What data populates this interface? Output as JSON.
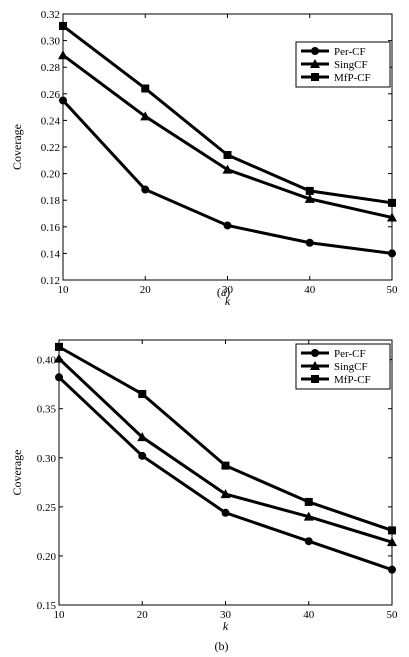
{
  "colors": {
    "line": "#000000",
    "axis": "#000000",
    "background": "#ffffff"
  },
  "chart_data": [
    {
      "type": "line",
      "caption": "(a)",
      "xlabel": "k",
      "ylabel": "Coverage",
      "x": [
        10,
        20,
        30,
        40,
        50
      ],
      "xticks": [
        "10",
        "20",
        "30",
        "40",
        "50"
      ],
      "xlim": [
        10,
        50
      ],
      "ylim": [
        0.12,
        0.32
      ],
      "yticks": [
        "0.12",
        "0.14",
        "0.16",
        "0.18",
        "0.20",
        "0.22",
        "0.24",
        "0.26",
        "0.28",
        "0.30",
        "0.32"
      ],
      "grid": false,
      "legend_position": "top-right",
      "series": [
        {
          "name": "Per-CF",
          "marker": "circle",
          "values": [
            0.255,
            0.188,
            0.161,
            0.148,
            0.14
          ]
        },
        {
          "name": "SingCF",
          "marker": "triangle",
          "values": [
            0.289,
            0.243,
            0.203,
            0.181,
            0.167
          ]
        },
        {
          "name": "MfP-CF",
          "marker": "square",
          "values": [
            0.311,
            0.264,
            0.214,
            0.187,
            0.178
          ]
        }
      ]
    },
    {
      "type": "line",
      "caption": "(b)",
      "xlabel": "k",
      "ylabel": "Coverage",
      "x": [
        10,
        20,
        30,
        40,
        50
      ],
      "xticks": [
        "10",
        "20",
        "30",
        "40",
        "50"
      ],
      "xlim": [
        10,
        50
      ],
      "ylim": [
        0.15,
        0.42
      ],
      "yticks": [
        "0.15",
        "0.20",
        "0.25",
        "0.30",
        "0.35",
        "0.40"
      ],
      "grid": false,
      "legend_position": "top-right",
      "series": [
        {
          "name": "Per-CF",
          "marker": "circle",
          "values": [
            0.382,
            0.302,
            0.244,
            0.215,
            0.186
          ]
        },
        {
          "name": "SingCF",
          "marker": "triangle",
          "values": [
            0.401,
            0.321,
            0.263,
            0.24,
            0.214
          ]
        },
        {
          "name": "MfP-CF",
          "marker": "square",
          "values": [
            0.413,
            0.365,
            0.292,
            0.255,
            0.226
          ]
        }
      ]
    }
  ]
}
